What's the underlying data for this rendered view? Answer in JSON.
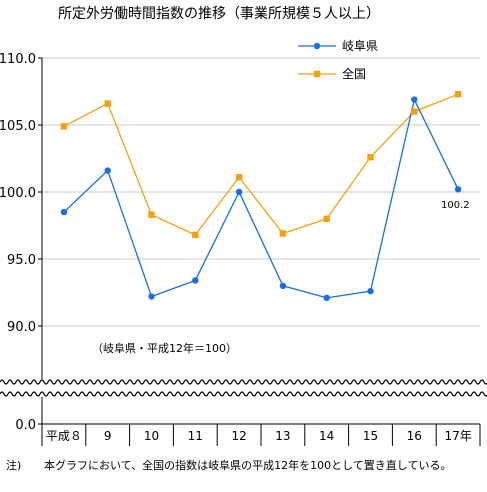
{
  "chart_data": {
    "type": "line",
    "title": "所定外労働時間指数の推移（事業所規模５人以上）",
    "categories": [
      "平成８",
      "9",
      "10",
      "11",
      "12",
      "13",
      "14",
      "15",
      "16",
      "17年"
    ],
    "series": [
      {
        "name": "岐阜県",
        "color": "#1a6fe0",
        "marker": "circle",
        "values": [
          98.5,
          101.6,
          92.2,
          93.4,
          100.0,
          93.0,
          92.1,
          92.6,
          106.9,
          100.2
        ]
      },
      {
        "name": "全国",
        "color": "#f5a00f",
        "marker": "square",
        "values": [
          104.9,
          106.6,
          98.3,
          96.8,
          101.1,
          96.9,
          98.0,
          102.6,
          106.0,
          107.3
        ]
      }
    ],
    "y_ticks": [
      "110.0",
      "105.0",
      "100.0",
      "95.0",
      "90.0",
      "0.0"
    ],
    "y_tick_values": [
      110,
      105,
      100,
      95,
      90
    ],
    "ylim": [
      85.5,
      110
    ],
    "axis_break": true,
    "data_label": "100.2",
    "annotation": "（岐阜県・平成12年＝100）",
    "legend_position": "top-right"
  },
  "footnote_label": "注)",
  "footnote": "本グラフにおいて、全国の指数は岐阜県の平成12年を100として置き直している。"
}
